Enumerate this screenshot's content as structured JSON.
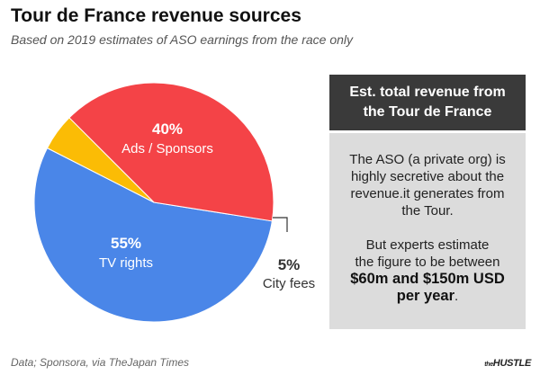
{
  "title": "Tour de France revenue sources",
  "subtitle": "Based on 2019 estimates of ASO earnings from the race only",
  "chart_data": {
    "type": "pie",
    "title": "Tour de France revenue sources",
    "subtitle": "Based on 2019 estimates of ASO earnings from the race only",
    "slices": [
      {
        "label": "TV rights",
        "value": 55,
        "value_label": "55%",
        "color": "#4a86e8"
      },
      {
        "label": "Ads / Sponsors",
        "value": 40,
        "value_label": "40%",
        "color": "#f44347"
      },
      {
        "label": "City fees",
        "value": 5,
        "value_label": "5%",
        "color": "#fbbc05"
      }
    ]
  },
  "infobox": {
    "header_line1": "Est. total revenue from",
    "header_line2": "the Tour de France",
    "para1_lines": [
      "The ASO (a private org) is",
      "highly secretive about the",
      "revenue.it generates from",
      "the Tour."
    ],
    "para2_lines": [
      "But experts estimate",
      "the figure to be between"
    ],
    "highlight_line1": "$60m and $150m USD",
    "highlight_line2": "per year",
    "tail": "."
  },
  "source": "Data; Sponsora, via TheJapan Times",
  "logo": {
    "prefix": "the",
    "name": "HUSTLE"
  }
}
